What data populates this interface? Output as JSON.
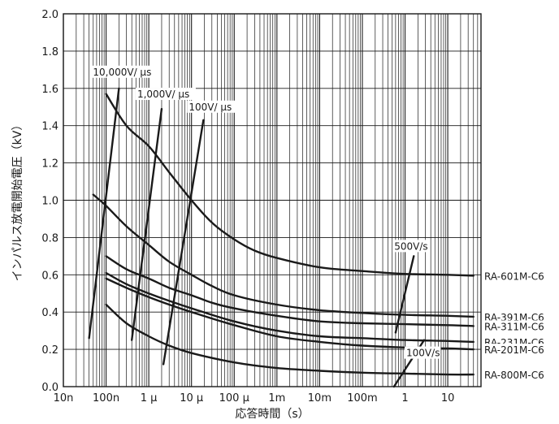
{
  "chart_data": {
    "type": "line",
    "title": "",
    "xlabel": "応答時間（s）",
    "ylabel": "インパルス放電開始電圧（kV）",
    "x_scale": "log",
    "xlim": [
      1e-08,
      60
    ],
    "ylim": [
      0.0,
      2.0
    ],
    "x_ticks": [
      {
        "value": 1e-08,
        "label": "10n"
      },
      {
        "value": 1e-07,
        "label": "100n"
      },
      {
        "value": 1e-06,
        "label": "1 μ"
      },
      {
        "value": 1e-05,
        "label": "10 μ"
      },
      {
        "value": 0.0001,
        "label": "100 μ"
      },
      {
        "value": 0.001,
        "label": "1m"
      },
      {
        "value": 0.01,
        "label": "10m"
      },
      {
        "value": 0.1,
        "label": "100m"
      },
      {
        "value": 1,
        "label": "1"
      },
      {
        "value": 10,
        "label": "10"
      }
    ],
    "y_ticks": [
      "0.0",
      "0.2",
      "0.4",
      "0.6",
      "0.8",
      "1.0",
      "1.2",
      "1.4",
      "1.6",
      "1.8",
      "2.0"
    ],
    "grid": true,
    "series": [
      {
        "name": "RA-601M-C6",
        "x": [
          1e-07,
          3e-07,
          1e-06,
          3e-06,
          1e-05,
          3e-05,
          0.0001,
          0.0003,
          0.001,
          0.01,
          0.1,
          1,
          10,
          40
        ],
        "y": [
          1.57,
          1.4,
          1.29,
          1.15,
          1.0,
          0.88,
          0.79,
          0.73,
          0.69,
          0.64,
          0.62,
          0.605,
          0.6,
          0.595
        ]
      },
      {
        "name": "RA-391M-C6",
        "x": [
          5e-08,
          1e-07,
          3e-07,
          1e-06,
          3e-06,
          1e-05,
          3e-05,
          0.0001,
          0.001,
          0.01,
          0.1,
          1,
          10,
          40
        ],
        "y": [
          1.03,
          0.97,
          0.86,
          0.76,
          0.67,
          0.6,
          0.54,
          0.49,
          0.44,
          0.41,
          0.395,
          0.385,
          0.38,
          0.375
        ]
      },
      {
        "name": "RA-311M-C6",
        "x": [
          1e-07,
          3e-07,
          1e-06,
          3e-06,
          1e-05,
          3e-05,
          0.0001,
          0.001,
          0.01,
          0.1,
          1,
          10,
          40
        ],
        "y": [
          0.7,
          0.63,
          0.58,
          0.53,
          0.49,
          0.45,
          0.42,
          0.38,
          0.35,
          0.34,
          0.335,
          0.33,
          0.325
        ]
      },
      {
        "name": "RA-231M-C6",
        "x": [
          1e-07,
          3e-07,
          1e-06,
          3e-06,
          1e-05,
          0.0001,
          0.001,
          0.01,
          0.1,
          1,
          10,
          40
        ],
        "y": [
          0.61,
          0.55,
          0.5,
          0.46,
          0.42,
          0.35,
          0.3,
          0.27,
          0.26,
          0.25,
          0.245,
          0.24
        ]
      },
      {
        "name": "RA-201M-C6",
        "x": [
          1e-07,
          3e-07,
          1e-06,
          3e-06,
          1e-05,
          0.0001,
          0.001,
          0.01,
          0.1,
          1,
          10,
          40
        ],
        "y": [
          0.58,
          0.53,
          0.48,
          0.44,
          0.4,
          0.33,
          0.27,
          0.24,
          0.22,
          0.21,
          0.205,
          0.2
        ]
      },
      {
        "name": "RA-800M-C6",
        "x": [
          1e-07,
          3e-07,
          1e-06,
          3e-06,
          1e-05,
          0.0001,
          0.001,
          0.01,
          0.1,
          1,
          10,
          40
        ],
        "y": [
          0.44,
          0.34,
          0.27,
          0.22,
          0.18,
          0.13,
          0.1,
          0.085,
          0.075,
          0.07,
          0.065,
          0.065
        ]
      }
    ],
    "annotations": [
      {
        "label": "10,000V/ μs",
        "x": [
          4e-08,
          2e-07
        ],
        "y": [
          0.26,
          1.6
        ]
      },
      {
        "label": "1,000V/ μs",
        "x": [
          4e-07,
          2e-06
        ],
        "y": [
          0.25,
          1.49
        ]
      },
      {
        "label": "100V/ μs",
        "x": [
          2.2e-06,
          1.9e-05
        ],
        "y": [
          0.12,
          1.43
        ]
      },
      {
        "label": "500V/s",
        "x": [
          0.6,
          1.6
        ],
        "y": [
          0.29,
          0.7
        ]
      },
      {
        "label": "100V/s",
        "x": [
          0.55,
          2.8
        ],
        "y": [
          0.0,
          0.25
        ]
      }
    ]
  }
}
